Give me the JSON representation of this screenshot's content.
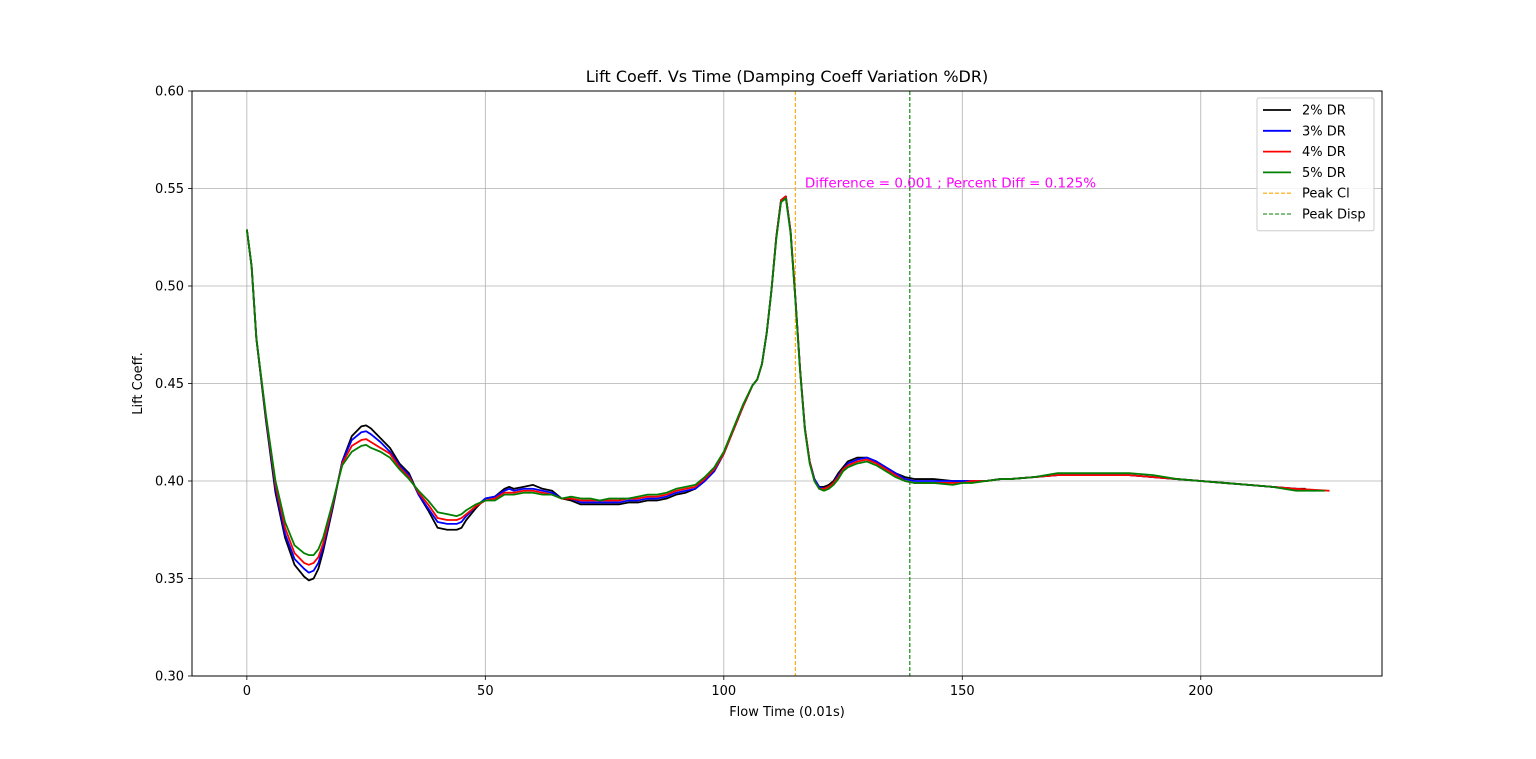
{
  "chart_data": {
    "type": "line",
    "title": "Lift Coeff. Vs Time (Damping Coeff Variation %DR)",
    "xlabel": "Flow Time (0.01s)",
    "ylabel": "Lift Coeff.",
    "xlim": [
      -11.5,
      238
    ],
    "ylim": [
      0.3,
      0.6
    ],
    "xticks": [
      0,
      50,
      100,
      150,
      200
    ],
    "yticks": [
      0.3,
      0.35,
      0.4,
      0.45,
      0.5,
      0.55,
      0.6
    ],
    "grid": true,
    "legend_position": "top-right",
    "series": [
      {
        "name": "2% DR",
        "color": "#000000",
        "x": [
          0,
          1,
          2,
          4,
          6,
          8,
          10,
          12,
          13,
          14,
          15,
          16,
          18,
          20,
          22,
          24,
          25,
          26,
          28,
          30,
          32,
          34,
          36,
          38,
          40,
          42,
          44,
          45,
          46,
          48,
          50,
          52,
          54,
          55,
          56,
          58,
          60,
          62,
          64,
          66,
          68,
          70,
          72,
          74,
          76,
          78,
          80,
          82,
          84,
          86,
          88,
          90,
          92,
          94,
          96,
          98,
          100,
          102,
          104,
          106,
          107,
          108,
          109,
          110,
          111,
          112,
          113,
          114,
          115,
          116,
          117,
          118,
          119,
          120,
          121,
          122,
          123,
          124,
          125,
          126,
          128,
          130,
          132,
          134,
          136,
          138,
          140,
          144,
          148,
          150,
          152,
          155,
          158,
          160,
          165,
          170,
          175,
          180,
          185,
          190,
          195,
          200,
          205,
          210,
          215,
          220,
          222
        ],
        "values": [
          0.529,
          0.51,
          0.473,
          0.431,
          0.394,
          0.371,
          0.357,
          0.351,
          0.349,
          0.35,
          0.355,
          0.364,
          0.386,
          0.41,
          0.423,
          0.428,
          0.4285,
          0.427,
          0.422,
          0.417,
          0.409,
          0.404,
          0.393,
          0.385,
          0.376,
          0.375,
          0.375,
          0.376,
          0.38,
          0.386,
          0.391,
          0.392,
          0.396,
          0.397,
          0.396,
          0.397,
          0.398,
          0.396,
          0.395,
          0.391,
          0.39,
          0.388,
          0.388,
          0.388,
          0.388,
          0.388,
          0.389,
          0.389,
          0.39,
          0.39,
          0.391,
          0.393,
          0.394,
          0.396,
          0.4,
          0.405,
          0.414,
          0.426,
          0.438,
          0.449,
          0.452,
          0.46,
          0.476,
          0.498,
          0.525,
          0.544,
          0.546,
          0.528,
          0.494,
          0.457,
          0.427,
          0.41,
          0.401,
          0.397,
          0.397,
          0.398,
          0.4,
          0.404,
          0.407,
          0.41,
          0.412,
          0.412,
          0.41,
          0.407,
          0.404,
          0.402,
          0.401,
          0.401,
          0.4,
          0.4,
          0.4,
          0.4,
          0.401,
          0.401,
          0.402,
          0.403,
          0.403,
          0.403,
          0.403,
          0.402,
          0.401,
          0.4,
          0.399,
          0.398,
          0.397,
          0.396,
          0.396
        ]
      },
      {
        "name": "3% DR",
        "color": "#0000ff",
        "x": [
          0,
          1,
          2,
          4,
          6,
          8,
          10,
          12,
          13,
          14,
          15,
          16,
          18,
          20,
          22,
          24,
          25,
          26,
          28,
          30,
          32,
          34,
          36,
          38,
          40,
          42,
          44,
          45,
          46,
          48,
          50,
          52,
          54,
          55,
          56,
          58,
          60,
          62,
          64,
          66,
          68,
          70,
          72,
          74,
          76,
          78,
          80,
          82,
          84,
          86,
          88,
          90,
          92,
          94,
          96,
          98,
          100,
          102,
          104,
          106,
          107,
          108,
          109,
          110,
          111,
          112,
          113,
          114,
          115,
          116,
          117,
          118,
          119,
          120,
          121,
          122,
          123,
          124,
          125,
          126,
          128,
          130,
          132,
          134,
          136,
          138,
          140,
          144,
          148,
          150,
          152,
          155,
          158,
          160,
          165,
          170,
          175,
          180,
          185,
          190,
          195,
          200,
          205,
          210,
          215,
          220,
          224
        ],
        "values": [
          0.529,
          0.51,
          0.473,
          0.432,
          0.396,
          0.373,
          0.36,
          0.355,
          0.353,
          0.354,
          0.358,
          0.366,
          0.387,
          0.41,
          0.421,
          0.425,
          0.4255,
          0.424,
          0.42,
          0.415,
          0.408,
          0.403,
          0.393,
          0.386,
          0.379,
          0.378,
          0.378,
          0.379,
          0.382,
          0.387,
          0.391,
          0.392,
          0.395,
          0.396,
          0.395,
          0.396,
          0.396,
          0.395,
          0.394,
          0.391,
          0.391,
          0.389,
          0.389,
          0.389,
          0.389,
          0.389,
          0.39,
          0.39,
          0.391,
          0.391,
          0.392,
          0.394,
          0.395,
          0.396,
          0.4,
          0.405,
          0.414,
          0.426,
          0.438,
          0.449,
          0.452,
          0.46,
          0.476,
          0.498,
          0.525,
          0.544,
          0.546,
          0.528,
          0.494,
          0.457,
          0.427,
          0.41,
          0.401,
          0.397,
          0.396,
          0.397,
          0.399,
          0.403,
          0.406,
          0.409,
          0.411,
          0.412,
          0.41,
          0.407,
          0.404,
          0.401,
          0.4,
          0.4,
          0.4,
          0.4,
          0.4,
          0.4,
          0.401,
          0.401,
          0.402,
          0.403,
          0.403,
          0.403,
          0.403,
          0.402,
          0.401,
          0.4,
          0.399,
          0.398,
          0.397,
          0.396,
          0.395
        ]
      },
      {
        "name": "4% DR",
        "color": "#ff0000",
        "x": [
          0,
          1,
          2,
          4,
          6,
          8,
          10,
          12,
          13,
          14,
          15,
          16,
          18,
          20,
          22,
          24,
          25,
          26,
          28,
          30,
          32,
          34,
          36,
          38,
          40,
          42,
          44,
          45,
          46,
          48,
          50,
          52,
          54,
          55,
          56,
          58,
          60,
          62,
          64,
          66,
          68,
          70,
          72,
          74,
          76,
          78,
          80,
          82,
          84,
          86,
          88,
          90,
          92,
          94,
          96,
          98,
          100,
          102,
          104,
          106,
          107,
          108,
          109,
          110,
          111,
          112,
          113,
          114,
          115,
          116,
          117,
          118,
          119,
          120,
          121,
          122,
          123,
          124,
          125,
          126,
          128,
          130,
          132,
          134,
          136,
          138,
          140,
          144,
          148,
          150,
          152,
          155,
          158,
          160,
          165,
          170,
          175,
          180,
          185,
          190,
          195,
          200,
          205,
          210,
          215,
          220,
          227
        ],
        "values": [
          0.529,
          0.51,
          0.473,
          0.433,
          0.398,
          0.376,
          0.363,
          0.358,
          0.357,
          0.358,
          0.361,
          0.368,
          0.388,
          0.409,
          0.418,
          0.421,
          0.4215,
          0.42,
          0.417,
          0.414,
          0.407,
          0.402,
          0.394,
          0.388,
          0.381,
          0.38,
          0.38,
          0.381,
          0.383,
          0.387,
          0.39,
          0.391,
          0.394,
          0.394,
          0.394,
          0.395,
          0.395,
          0.394,
          0.393,
          0.391,
          0.391,
          0.39,
          0.39,
          0.39,
          0.39,
          0.39,
          0.391,
          0.391,
          0.392,
          0.392,
          0.393,
          0.395,
          0.396,
          0.397,
          0.401,
          0.406,
          0.414,
          0.426,
          0.438,
          0.449,
          0.452,
          0.46,
          0.476,
          0.498,
          0.525,
          0.544,
          0.546,
          0.528,
          0.494,
          0.457,
          0.427,
          0.41,
          0.4,
          0.396,
          0.396,
          0.397,
          0.399,
          0.402,
          0.406,
          0.408,
          0.41,
          0.411,
          0.409,
          0.406,
          0.403,
          0.4,
          0.399,
          0.399,
          0.399,
          0.399,
          0.4,
          0.4,
          0.401,
          0.401,
          0.402,
          0.403,
          0.403,
          0.403,
          0.403,
          0.402,
          0.401,
          0.4,
          0.399,
          0.398,
          0.397,
          0.396,
          0.395
        ]
      },
      {
        "name": "5% DR",
        "color": "#008000",
        "x": [
          0,
          1,
          2,
          4,
          6,
          8,
          10,
          12,
          13,
          14,
          15,
          16,
          18,
          20,
          22,
          24,
          25,
          26,
          28,
          30,
          32,
          34,
          36,
          38,
          40,
          42,
          44,
          45,
          46,
          48,
          50,
          52,
          54,
          55,
          56,
          58,
          60,
          62,
          64,
          66,
          68,
          70,
          72,
          74,
          76,
          78,
          80,
          82,
          84,
          86,
          88,
          90,
          92,
          94,
          96,
          98,
          100,
          102,
          104,
          106,
          107,
          108,
          109,
          110,
          111,
          112,
          113,
          114,
          115,
          116,
          117,
          118,
          119,
          120,
          121,
          122,
          123,
          124,
          125,
          126,
          128,
          130,
          132,
          134,
          136,
          138,
          140,
          144,
          148,
          150,
          152,
          155,
          158,
          160,
          165,
          170,
          175,
          180,
          185,
          190,
          195,
          200,
          205,
          210,
          215,
          220,
          226
        ],
        "values": [
          0.529,
          0.51,
          0.473,
          0.434,
          0.4,
          0.379,
          0.367,
          0.363,
          0.362,
          0.362,
          0.365,
          0.371,
          0.389,
          0.408,
          0.415,
          0.418,
          0.4185,
          0.417,
          0.415,
          0.412,
          0.406,
          0.401,
          0.395,
          0.39,
          0.384,
          0.383,
          0.382,
          0.383,
          0.385,
          0.388,
          0.39,
          0.39,
          0.393,
          0.393,
          0.393,
          0.394,
          0.394,
          0.393,
          0.393,
          0.391,
          0.392,
          0.391,
          0.391,
          0.39,
          0.391,
          0.391,
          0.391,
          0.392,
          0.393,
          0.393,
          0.394,
          0.396,
          0.397,
          0.398,
          0.402,
          0.407,
          0.415,
          0.427,
          0.439,
          0.449,
          0.452,
          0.46,
          0.476,
          0.498,
          0.524,
          0.543,
          0.545,
          0.527,
          0.493,
          0.456,
          0.426,
          0.409,
          0.4,
          0.396,
          0.395,
          0.396,
          0.398,
          0.401,
          0.405,
          0.407,
          0.409,
          0.41,
          0.408,
          0.405,
          0.402,
          0.4,
          0.399,
          0.399,
          0.398,
          0.399,
          0.399,
          0.4,
          0.401,
          0.401,
          0.402,
          0.404,
          0.404,
          0.404,
          0.404,
          0.403,
          0.401,
          0.4,
          0.399,
          0.398,
          0.397,
          0.395,
          0.395
        ]
      }
    ],
    "vlines": [
      {
        "name": "Peak Cl",
        "x": 115,
        "color": "#ffa500"
      },
      {
        "name": "Peak Disp",
        "x": 139,
        "color": "#008000"
      }
    ],
    "annotation": {
      "text": "Difference = 0.001 ; Percent Diff = 0.125%",
      "x": 117,
      "y": 0.5505,
      "color": "#ff00ff"
    }
  }
}
